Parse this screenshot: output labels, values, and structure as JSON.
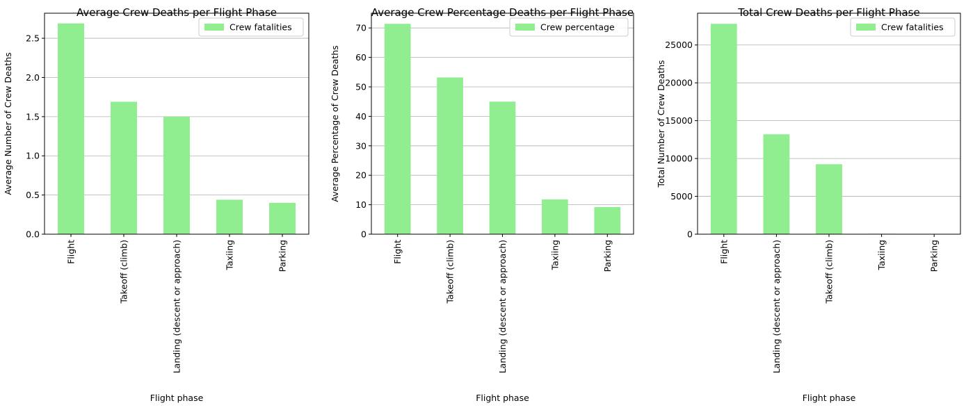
{
  "chart_data": [
    {
      "type": "bar",
      "title": "Average Crew Deaths per Flight Phase",
      "xlabel": "Flight phase",
      "ylabel": "Average Number of Crew Deaths",
      "categories": [
        "Flight",
        "Takeoff (climb)",
        "Landing (descent or approach)",
        "Taxiing",
        "Parking"
      ],
      "series": [
        {
          "name": "Crew fatalities",
          "values": [
            2.69,
            1.69,
            1.5,
            0.44,
            0.4
          ]
        }
      ],
      "ylim": [
        0,
        2.82
      ],
      "yticks": [
        0.0,
        0.5,
        1.0,
        1.5,
        2.0,
        2.5
      ],
      "ytick_labels": [
        "0.0",
        "0.5",
        "1.0",
        "1.5",
        "2.0",
        "2.5"
      ],
      "grid": "y",
      "legend": "top-right",
      "color": "#90ee90"
    },
    {
      "type": "bar",
      "title": "Average Crew Percentage Deaths per Flight Phase",
      "xlabel": "Flight phase",
      "ylabel": "Average Percentage of Crew Deaths",
      "categories": [
        "Flight",
        "Takeoff (climb)",
        "Landing (descent or approach)",
        "Taxiing",
        "Parking"
      ],
      "series": [
        {
          "name": "Crew percentage",
          "values": [
            71.4,
            53.2,
            45.0,
            11.8,
            9.2
          ]
        }
      ],
      "ylim": [
        0,
        75
      ],
      "yticks": [
        0,
        10,
        20,
        30,
        40,
        50,
        60,
        70
      ],
      "ytick_labels": [
        "0",
        "10",
        "20",
        "30",
        "40",
        "50",
        "60",
        "70"
      ],
      "grid": "y",
      "legend": "top-right",
      "color": "#90ee90"
    },
    {
      "type": "bar",
      "title": "Total Crew Deaths per Flight Phase",
      "xlabel": "Flight phase",
      "ylabel": "Total Number of Crew Deaths",
      "categories": [
        "Flight",
        "Landing (descent or approach)",
        "Takeoff (climb)",
        "Taxiing",
        "Parking"
      ],
      "series": [
        {
          "name": "Crew fatalities",
          "values": [
            27800,
            13200,
            9250,
            60,
            45
          ]
        }
      ],
      "ylim": [
        0,
        29200
      ],
      "yticks": [
        0,
        5000,
        10000,
        15000,
        20000,
        25000
      ],
      "ytick_labels": [
        "0",
        "5000",
        "10000",
        "15000",
        "20000",
        "25000"
      ],
      "grid": "y",
      "legend": "top-right",
      "color": "#90ee90"
    }
  ]
}
